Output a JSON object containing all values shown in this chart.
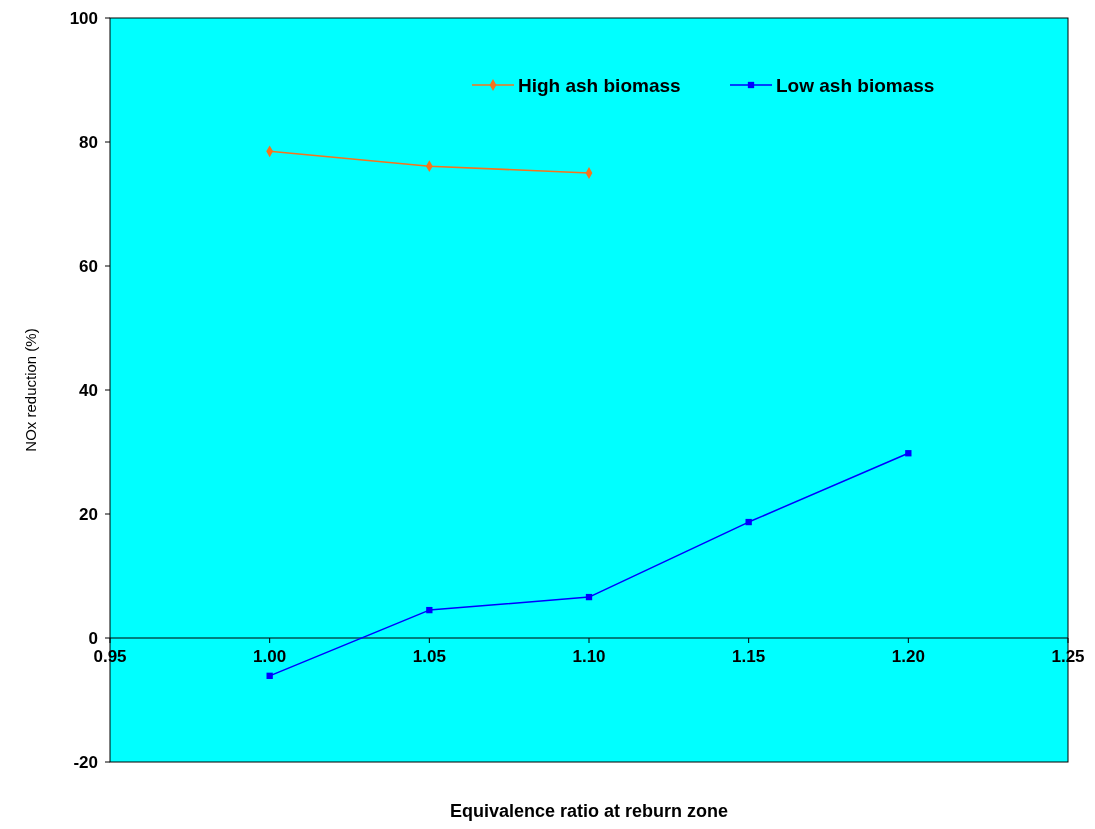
{
  "chart_data": {
    "type": "line",
    "xlabel": "Equivalence ratio at reburn zone",
    "ylabel": "NOx reduction (%)",
    "xlim": [
      0.95,
      1.25
    ],
    "xticks": [
      {
        "value": 0.95,
        "label": "0.95"
      },
      {
        "value": 1,
        "label": "1.00"
      },
      {
        "value": 1.05,
        "label": "1.05"
      },
      {
        "value": 1.1,
        "label": "1.10"
      },
      {
        "value": 1.15,
        "label": "1.15"
      },
      {
        "value": 1.2,
        "label": "1.20"
      },
      {
        "value": 1.25,
        "label": "1.25"
      }
    ],
    "ylim": [
      -20,
      100
    ],
    "yticks": [
      -20,
      0,
      20,
      40,
      60,
      80,
      100
    ],
    "grid": false,
    "legend": "top right",
    "series": [
      {
        "name": "High ash biomass",
        "color": "#f7731c",
        "marker": "diamond",
        "x": [
          1,
          1.05,
          1.1
        ],
        "values": [
          78.5,
          76.1,
          75.0
        ]
      },
      {
        "name": "Low ash biomass",
        "color": "#0000ff",
        "marker": "square",
        "x": [
          1,
          1.05,
          1.1,
          1.15,
          1.2
        ],
        "values": [
          -6.1,
          4.5,
          6.6,
          18.7,
          29.8
        ]
      }
    ]
  }
}
